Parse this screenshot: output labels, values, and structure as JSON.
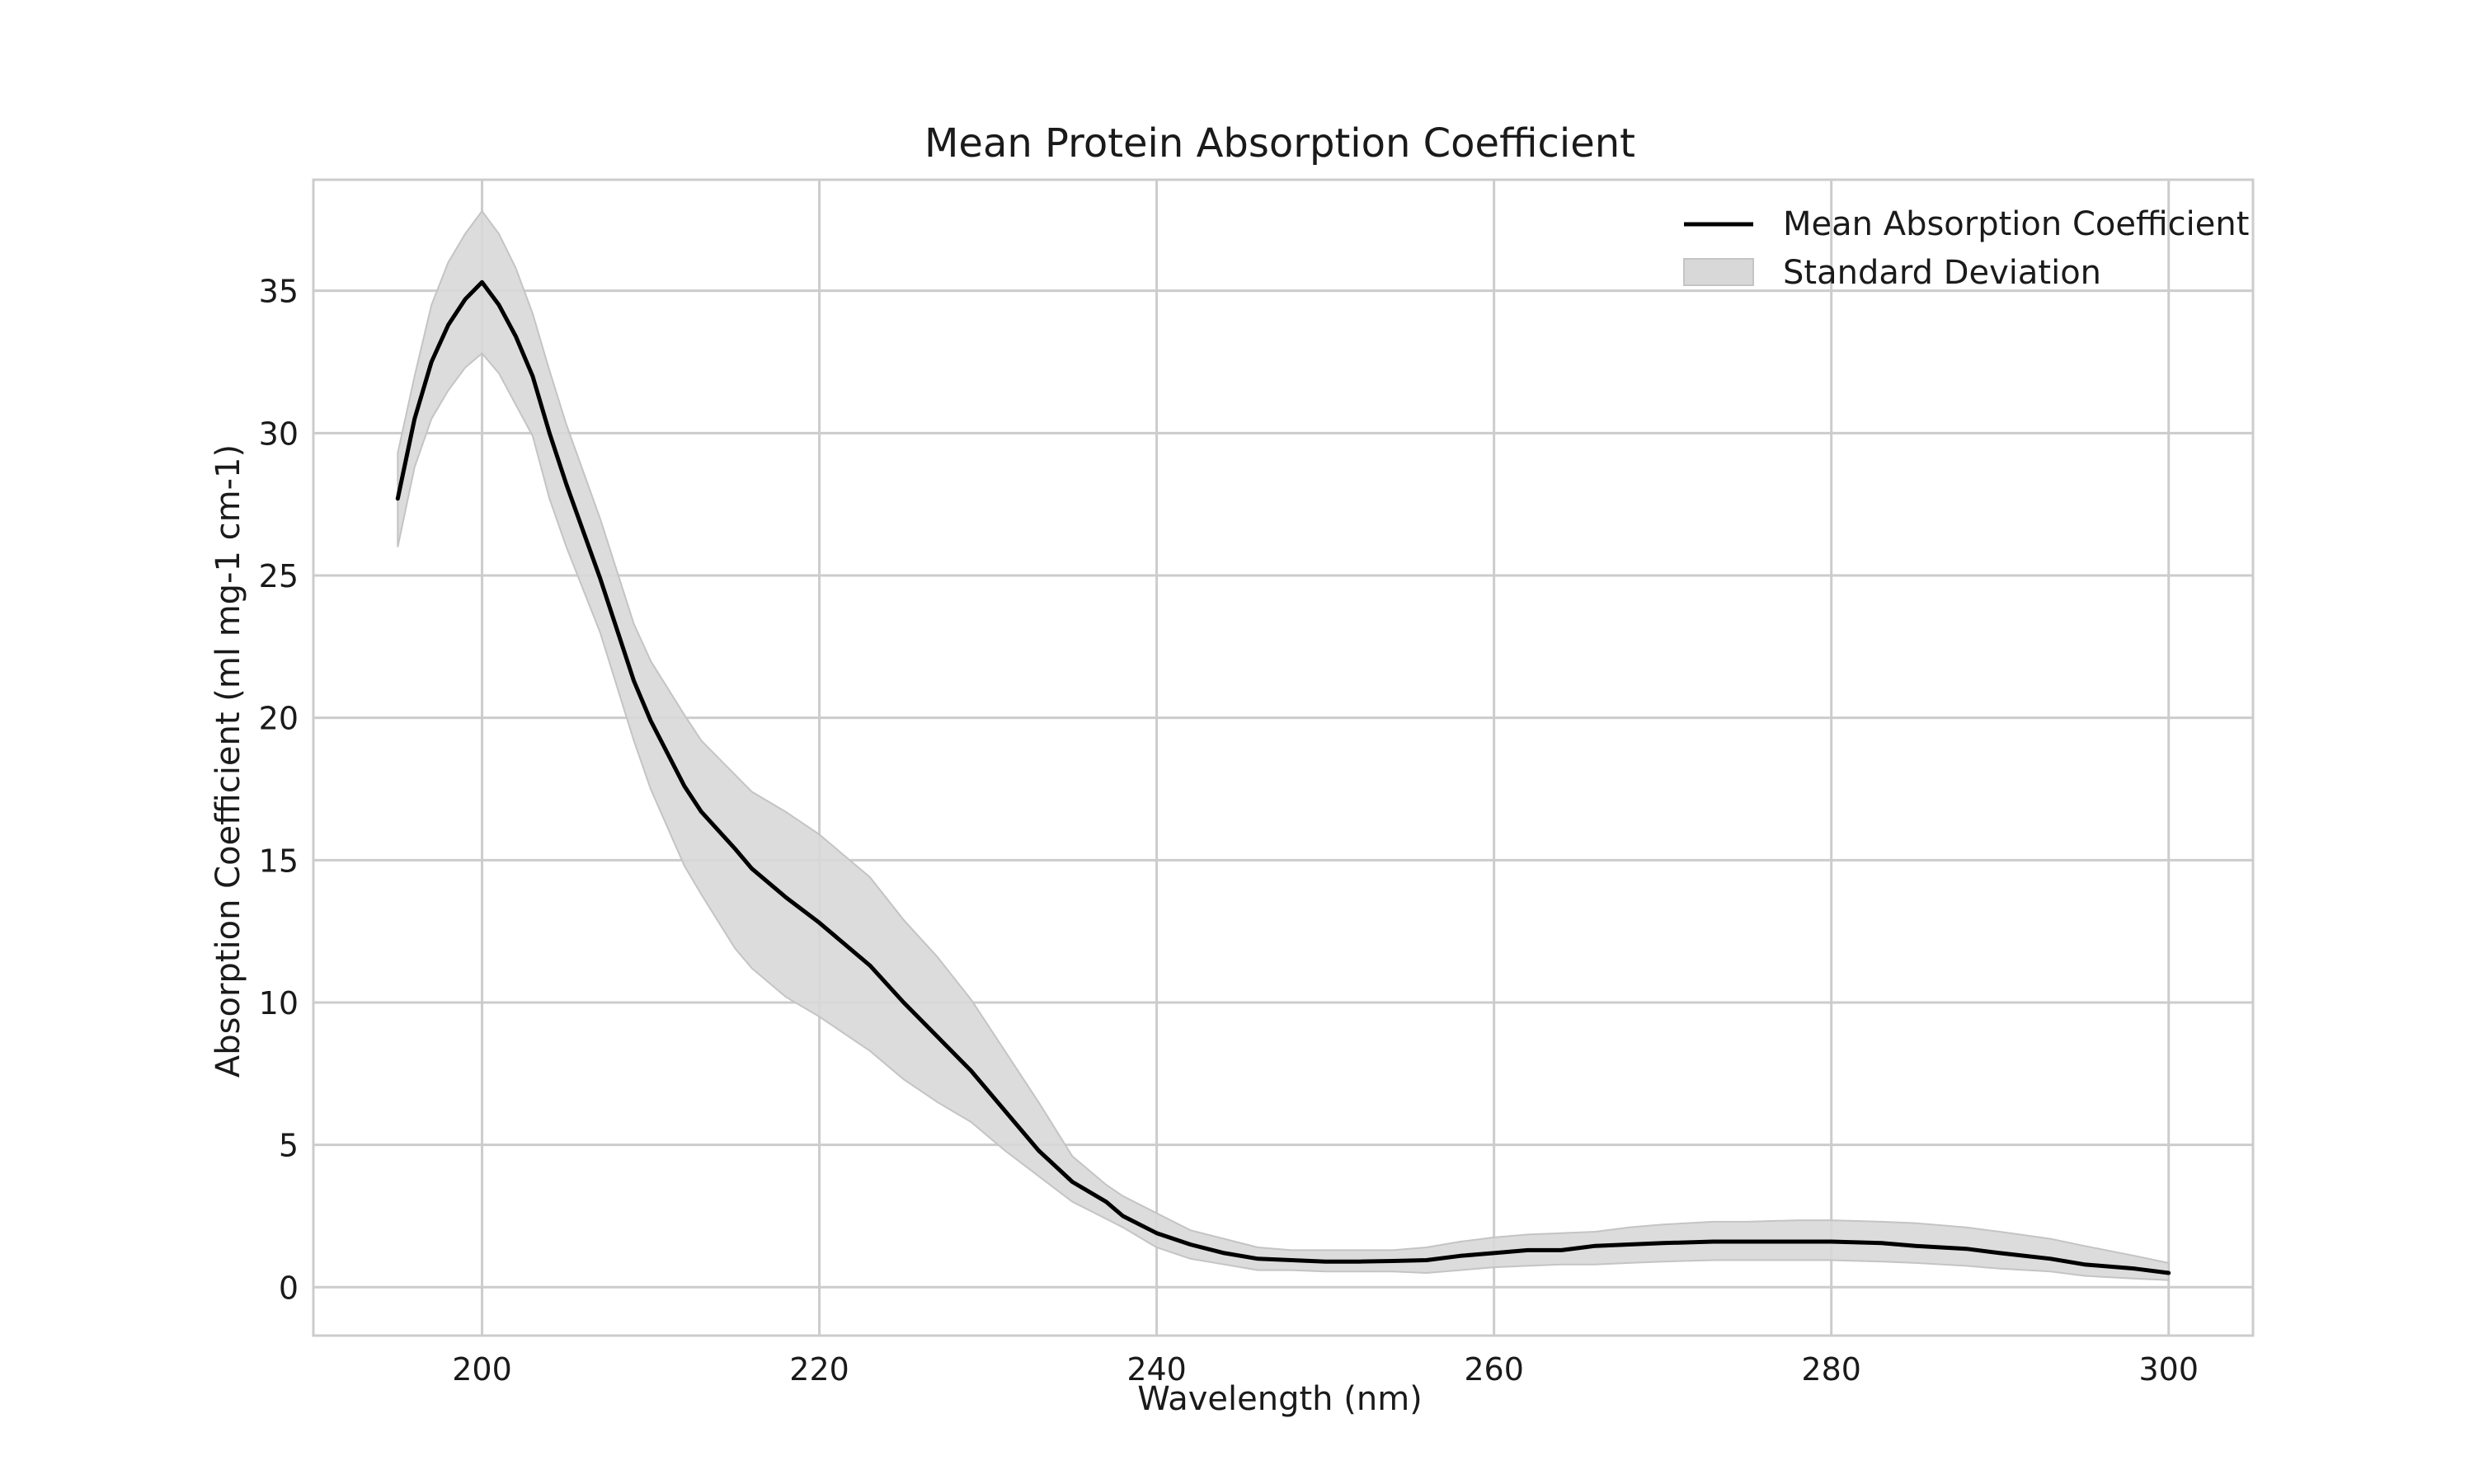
{
  "chart_data": {
    "type": "line",
    "title": "Mean Protein Absorption Coefficient",
    "xlabel": "Wavelength (nm)",
    "ylabel": "Absorption Coefficient (ml mg-1 cm-1)",
    "xlim": [
      190,
      305
    ],
    "ylim": [
      -1.7,
      38.9
    ],
    "x_ticks": [
      200,
      220,
      240,
      260,
      280,
      300
    ],
    "y_ticks": [
      0,
      5,
      10,
      15,
      20,
      25,
      30,
      35
    ],
    "grid": true,
    "legend_position": "top-right",
    "series": [
      {
        "name": "Mean Absorption Coefficient",
        "kind": "line",
        "color": "#000000",
        "x": [
          195,
          196,
          197,
          198,
          199,
          200,
          201,
          202,
          203,
          204,
          205,
          207,
          209,
          210,
          212,
          213,
          215,
          216,
          218,
          220,
          223,
          225,
          227,
          229,
          231,
          233,
          235,
          237,
          238,
          240,
          242,
          244,
          246,
          248,
          250,
          252,
          254,
          256,
          258,
          260,
          262,
          264,
          266,
          268,
          270,
          273,
          275,
          278,
          280,
          283,
          285,
          288,
          290,
          293,
          295,
          298,
          300
        ],
        "y": [
          27.7,
          30.5,
          32.5,
          33.8,
          34.7,
          35.3,
          34.5,
          33.4,
          32.0,
          30.0,
          28.2,
          24.9,
          21.3,
          19.9,
          17.6,
          16.7,
          15.4,
          14.7,
          13.7,
          12.8,
          11.3,
          10.0,
          8.8,
          7.6,
          6.2,
          4.8,
          3.7,
          3.0,
          2.5,
          1.9,
          1.5,
          1.2,
          1.0,
          0.95,
          0.9,
          0.9,
          0.92,
          0.95,
          1.1,
          1.2,
          1.3,
          1.3,
          1.45,
          1.5,
          1.55,
          1.6,
          1.6,
          1.6,
          1.6,
          1.55,
          1.45,
          1.35,
          1.2,
          1.0,
          0.8,
          0.65,
          0.5
        ]
      },
      {
        "name": "Standard Deviation",
        "kind": "band",
        "color": "#d8d8d8",
        "x": [
          195,
          196,
          197,
          198,
          199,
          200,
          201,
          202,
          203,
          204,
          205,
          207,
          209,
          210,
          212,
          213,
          215,
          216,
          218,
          220,
          223,
          225,
          227,
          229,
          231,
          233,
          235,
          237,
          238,
          240,
          242,
          244,
          246,
          248,
          250,
          252,
          254,
          256,
          258,
          260,
          262,
          264,
          266,
          268,
          270,
          273,
          275,
          278,
          280,
          283,
          285,
          288,
          290,
          293,
          295,
          298,
          300
        ],
        "lower": [
          26.0,
          28.8,
          30.5,
          31.5,
          32.3,
          32.8,
          32.1,
          31.0,
          29.9,
          27.7,
          26.0,
          23.0,
          19.2,
          17.5,
          14.8,
          13.8,
          11.9,
          11.2,
          10.2,
          9.5,
          8.3,
          7.3,
          6.5,
          5.8,
          4.8,
          3.9,
          3.0,
          2.4,
          2.1,
          1.4,
          1.0,
          0.8,
          0.6,
          0.6,
          0.55,
          0.55,
          0.55,
          0.5,
          0.6,
          0.7,
          0.75,
          0.8,
          0.8,
          0.85,
          0.9,
          0.95,
          0.95,
          0.95,
          0.95,
          0.9,
          0.85,
          0.75,
          0.65,
          0.55,
          0.4,
          0.3,
          0.25
        ],
        "upper": [
          29.3,
          32.0,
          34.5,
          36.0,
          37.0,
          37.8,
          37.0,
          35.8,
          34.2,
          32.2,
          30.3,
          27.0,
          23.3,
          22.0,
          20.1,
          19.2,
          18.0,
          17.4,
          16.7,
          15.9,
          14.4,
          12.9,
          11.6,
          10.1,
          8.3,
          6.5,
          4.6,
          3.6,
          3.2,
          2.6,
          2.0,
          1.7,
          1.4,
          1.3,
          1.3,
          1.3,
          1.3,
          1.4,
          1.6,
          1.75,
          1.85,
          1.9,
          1.95,
          2.1,
          2.2,
          2.3,
          2.3,
          2.35,
          2.35,
          2.3,
          2.25,
          2.1,
          1.95,
          1.7,
          1.45,
          1.1,
          0.85
        ]
      }
    ]
  }
}
